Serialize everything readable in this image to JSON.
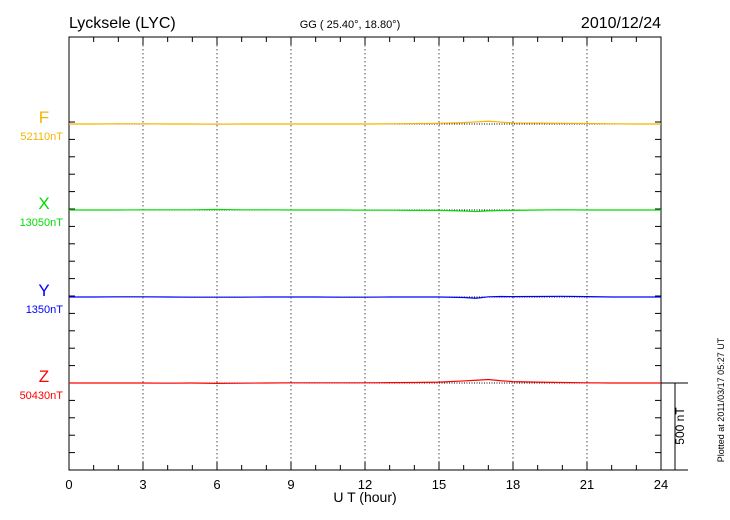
{
  "chart_data": {
    "type": "line",
    "title": "Lycksele (LYC)",
    "subtitle": "GG ( 25.40°,  18.80°)",
    "date": "2010/12/24",
    "xlabel": "U T (hour)",
    "xlim": [
      0,
      24
    ],
    "xticks": [
      "0",
      "3",
      "6",
      "9",
      "12",
      "15",
      "18",
      "21",
      "24"
    ],
    "grid": true,
    "scale_bar_label": "500 nT",
    "scale_bar_nT": 500,
    "footer": "Plotted at 2011/03/17 05:27 UT",
    "x": [
      0,
      1,
      2,
      3,
      4,
      5,
      6,
      7,
      8,
      9,
      10,
      11,
      12,
      13,
      14,
      15,
      16,
      16.5,
      17,
      17.5,
      18,
      19,
      20,
      21,
      22,
      23,
      24
    ],
    "series": [
      {
        "name": "F",
        "baseline_label": "52110nT",
        "color": "#f5b400",
        "values": [
          0,
          0,
          1,
          1,
          0,
          0,
          -1,
          0,
          0,
          0,
          0,
          0,
          0,
          1,
          2,
          4,
          8,
          12,
          16,
          11,
          6,
          5,
          4,
          3,
          1,
          0,
          0
        ]
      },
      {
        "name": "X",
        "baseline_label": "13050nT",
        "color": "#00dd00",
        "values": [
          0,
          0,
          0,
          1,
          1,
          1,
          3,
          1,
          1,
          0,
          0,
          0,
          -1,
          -1,
          -2,
          -2,
          -6,
          -9,
          -5,
          -3,
          -2,
          0,
          1,
          0,
          0,
          0,
          0
        ]
      },
      {
        "name": "Y",
        "baseline_label": "1350nT",
        "color": "#0000ff",
        "values": [
          0,
          0,
          1,
          1,
          0,
          -1,
          -1,
          -1,
          0,
          0,
          0,
          -1,
          -1,
          0,
          0,
          0,
          -3,
          -7,
          1,
          3,
          2,
          3,
          4,
          2,
          0,
          0,
          0
        ]
      },
      {
        "name": "Z",
        "baseline_label": "50430nT",
        "color": "#ff0000",
        "values": [
          0,
          0,
          0,
          0,
          -1,
          0,
          -2,
          -1,
          0,
          1,
          1,
          1,
          1,
          2,
          3,
          5,
          12,
          16,
          20,
          13,
          8,
          5,
          3,
          1,
          0,
          0,
          0
        ]
      }
    ]
  }
}
